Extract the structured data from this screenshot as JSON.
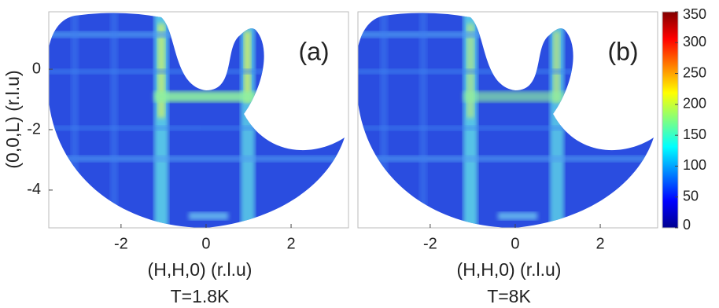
{
  "chart_data": [
    {
      "type": "heatmap",
      "panel_label": "(a)",
      "xlabel": "(H,H,0) (r.l.u)",
      "ylabel": "(0,0,L) (r.l.u)",
      "title": "T=1.8K",
      "xlim": [
        -3.7,
        3.35
      ],
      "ylim": [
        -5.25,
        1.9
      ],
      "xticks": [
        -2,
        0,
        2
      ],
      "yticks": [
        0,
        -2,
        -4
      ]
    },
    {
      "type": "heatmap",
      "panel_label": "(b)",
      "xlabel": "(H,H,0) (r.l.u)",
      "title": "T=8K",
      "xlim": [
        -3.7,
        3.35
      ],
      "ylim": [
        -5.25,
        1.9
      ],
      "xticks": [
        -2,
        0,
        2
      ],
      "clim": [
        0,
        350
      ],
      "cticks": [
        0,
        50,
        100,
        150,
        200,
        250,
        300,
        350
      ]
    }
  ]
}
